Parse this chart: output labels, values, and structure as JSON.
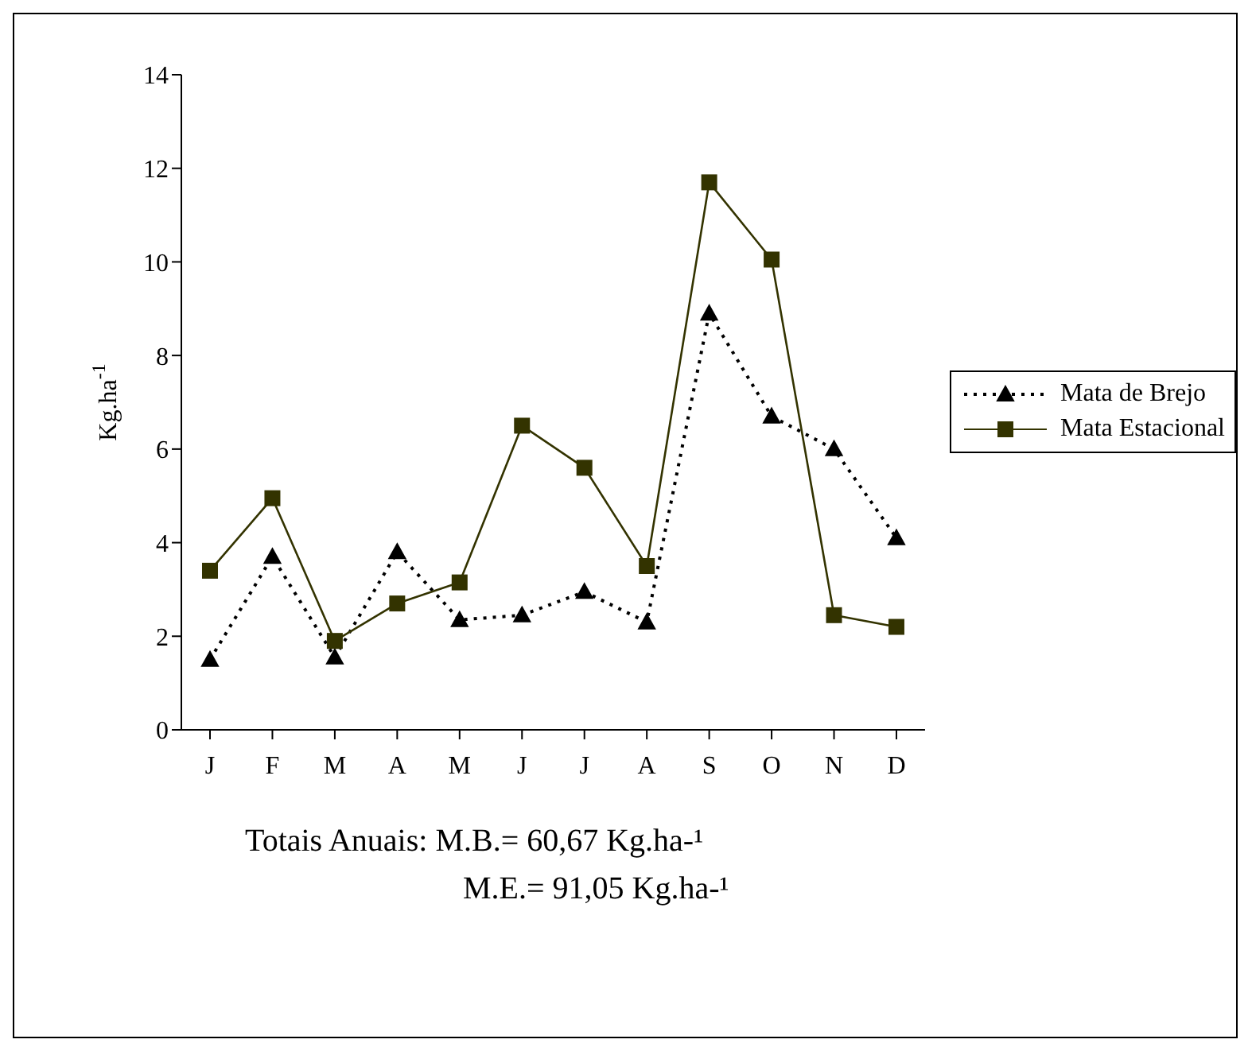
{
  "chart_data": {
    "type": "line",
    "ylabel": "Kg.ha$^{-1}$",
    "categories": [
      "J",
      "F",
      "M",
      "A",
      "M",
      "J",
      "J",
      "A",
      "S",
      "O",
      "N",
      "D"
    ],
    "series": [
      {
        "name": "Mata de Brejo",
        "color": "#000000",
        "marker": "triangle",
        "line_style": "dotted",
        "values": [
          1.5,
          3.7,
          1.55,
          3.8,
          2.35,
          2.45,
          2.95,
          2.3,
          8.9,
          6.7,
          6.0,
          4.1
        ]
      },
      {
        "name": "Mata Estacional",
        "color": "#333300",
        "marker": "square",
        "line_style": "solid",
        "values": [
          3.4,
          4.95,
          1.9,
          2.7,
          3.15,
          6.5,
          5.6,
          3.5,
          11.7,
          10.05,
          2.45,
          2.2
        ]
      }
    ],
    "ylim": [
      0,
      14
    ],
    "yticks": [
      0,
      2,
      4,
      6,
      8,
      10,
      12,
      14
    ],
    "grid": false,
    "legend": "right",
    "annotations": [
      "Totais Anuais: M.B.= 60,67 Kg.ha-¹",
      "M.E.= 91,05 Kg.ha-¹"
    ]
  }
}
